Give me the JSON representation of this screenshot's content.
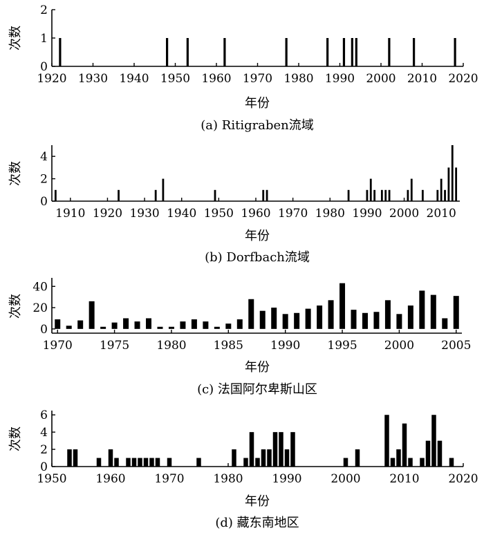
{
  "chart_data": [
    {
      "id": "a",
      "type": "bar",
      "caption": "(a) Ritigraben流域",
      "xlabel": "年份",
      "ylabel": "次数",
      "xlim": [
        1920,
        2020
      ],
      "ylim": [
        0,
        2
      ],
      "xticks": [
        1920,
        1930,
        1940,
        1950,
        1960,
        1970,
        1980,
        1990,
        2000,
        2010,
        2020
      ],
      "yticks": [
        0,
        1,
        2
      ],
      "x": [
        1922,
        1948,
        1953,
        1962,
        1977,
        1987,
        1991,
        1993,
        1994,
        2002,
        2008,
        2018
      ],
      "values": [
        1,
        1,
        1,
        1,
        1,
        1,
        1,
        1,
        1,
        1,
        1,
        1
      ]
    },
    {
      "id": "b",
      "type": "bar",
      "caption": "(b) Dorfbach流域",
      "xlabel": "年份",
      "ylabel": "次数",
      "xlim": [
        1905,
        2015
      ],
      "ylim": [
        0,
        5
      ],
      "xticks": [
        1910,
        1920,
        1930,
        1940,
        1950,
        1960,
        1970,
        1980,
        1990,
        2000,
        2010
      ],
      "yticks": [
        0,
        2,
        4
      ],
      "x": [
        1906,
        1923,
        1933,
        1935,
        1949,
        1962,
        1963,
        1985,
        1990,
        1991,
        1992,
        1994,
        1995,
        1996,
        2001,
        2002,
        2005,
        2009,
        2010,
        2011,
        2012,
        2013,
        2014
      ],
      "values": [
        1,
        1,
        1,
        2,
        1,
        1,
        1,
        1,
        1,
        2,
        1,
        1,
        1,
        1,
        1,
        2,
        1,
        1,
        2,
        1,
        3,
        5,
        3
      ]
    },
    {
      "id": "c",
      "type": "bar",
      "caption": "(c) 法国阿尔卑斯山区",
      "xlabel": "年份",
      "ylabel": "次数",
      "xlim": [
        1969.5,
        2005.5
      ],
      "ylim": [
        -4,
        48
      ],
      "xticks": [
        1970,
        1975,
        1980,
        1985,
        1990,
        1995,
        2000,
        2005
      ],
      "yticks": [
        0,
        20,
        40
      ],
      "x": [
        1970,
        1971,
        1972,
        1973,
        1974,
        1975,
        1976,
        1977,
        1978,
        1979,
        1980,
        1981,
        1982,
        1983,
        1984,
        1985,
        1986,
        1987,
        1988,
        1989,
        1990,
        1991,
        1992,
        1993,
        1994,
        1995,
        1996,
        1997,
        1998,
        1999,
        2000,
        2001,
        2002,
        2003,
        2004,
        2005
      ],
      "values": [
        9,
        3,
        8,
        26,
        2,
        6,
        10,
        7,
        10,
        2,
        2,
        7,
        9,
        7,
        2,
        5,
        9,
        28,
        17,
        20,
        14,
        15,
        19,
        22,
        27,
        43,
        18,
        15,
        16,
        27,
        14,
        22,
        36,
        32,
        10,
        31
      ]
    },
    {
      "id": "d",
      "type": "bar",
      "caption": "(d) 藏东南地区",
      "xlabel": "年份",
      "ylabel": "次数",
      "xlim": [
        1950,
        2020
      ],
      "ylim": [
        0,
        6.5
      ],
      "xticks": [
        1950,
        1960,
        1970,
        1980,
        1990,
        2000,
        2010,
        2020
      ],
      "yticks": [
        0,
        2,
        4,
        6
      ],
      "x": [
        1953,
        1954,
        1958,
        1960,
        1961,
        1963,
        1964,
        1965,
        1966,
        1967,
        1968,
        1970,
        1975,
        1981,
        1983,
        1984,
        1985,
        1986,
        1987,
        1988,
        1989,
        1990,
        1991,
        2000,
        2002,
        2007,
        2008,
        2009,
        2010,
        2011,
        2013,
        2014,
        2015,
        2016,
        2018
      ],
      "values": [
        2,
        2,
        1,
        2,
        1,
        1,
        1,
        1,
        1,
        1,
        1,
        1,
        1,
        2,
        1,
        4,
        1,
        2,
        2,
        4,
        4,
        2,
        4,
        1,
        2,
        6,
        1,
        2,
        5,
        1,
        1,
        3,
        6,
        3,
        1
      ]
    }
  ]
}
